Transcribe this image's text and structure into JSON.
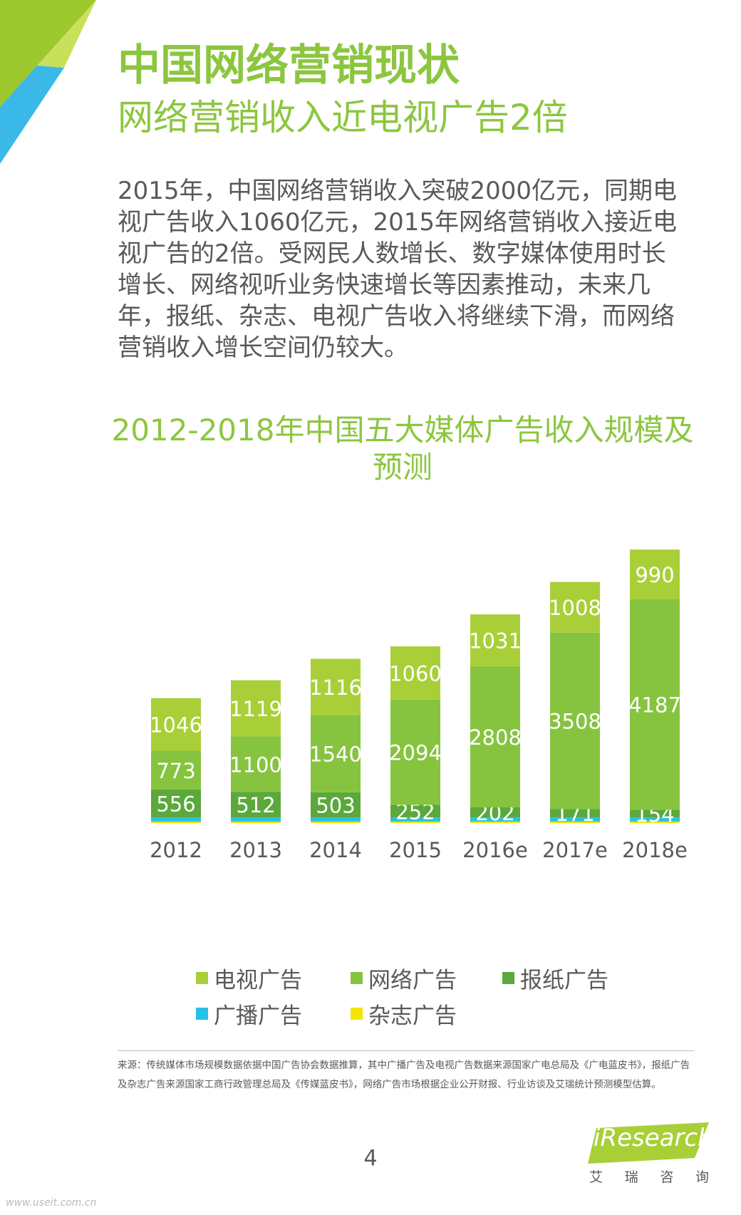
{
  "header": {
    "title": "中国网络营销现状",
    "subtitle": "网络营销收入近电视广告2倍"
  },
  "body": {
    "paragraph": "2015年，中国网络营销收入突破2000亿元，同期电视广告收入1060亿元，2015年网络营销收入接近电视广告的2倍。受网民人数增长、数字媒体使用时长增长、网络视听业务快速增长等因素推动，未来几年，报纸、杂志、电视广告收入将继续下滑，而网络营销收入增长空间仍较大。"
  },
  "chart_data": {
    "type": "bar",
    "stacked": true,
    "title": "2012-2018年中国五大媒体广告收入规模及预测",
    "categories": [
      "2012",
      "2013",
      "2014",
      "2015",
      "2016e",
      "2017e",
      "2018e"
    ],
    "series": [
      {
        "name": "杂志广告",
        "color": "#f2e600",
        "values": [
          30,
          30,
          30,
          30,
          30,
          30,
          30
        ],
        "labels": [
          null,
          null,
          null,
          null,
          null,
          null,
          null
        ]
      },
      {
        "name": "广播广告",
        "color": "#28c0e8",
        "values": [
          80,
          80,
          80,
          80,
          80,
          80,
          80
        ],
        "labels": [
          null,
          null,
          null,
          null,
          null,
          null,
          null
        ]
      },
      {
        "name": "报纸广告",
        "color": "#5ba83b",
        "values": [
          556,
          512,
          503,
          252,
          202,
          171,
          154
        ],
        "labels": [
          "556",
          "512",
          "503",
          "252",
          "202",
          "171",
          "154"
        ]
      },
      {
        "name": "网络广告",
        "color": "#86c440",
        "values": [
          773,
          1100,
          1540,
          2094,
          2808,
          3508,
          4187
        ],
        "labels": [
          "773",
          "1100",
          "1540",
          "2094",
          "2808",
          "3508",
          "4187"
        ]
      },
      {
        "name": "电视广告",
        "color": "#a9cf38",
        "values": [
          1046,
          1119,
          1116,
          1060,
          1031,
          1008,
          990
        ],
        "labels": [
          "1046",
          "1119",
          "1116",
          "1060",
          "1031",
          "1008",
          "990"
        ]
      }
    ],
    "legend_order": [
      "电视广告",
      "网络广告",
      "报纸广告",
      "广播广告",
      "杂志广告"
    ],
    "legend_position": "bottom",
    "grid": false,
    "ylim": [
      0,
      5600
    ]
  },
  "source": {
    "text": "来源：传统媒体市场规模数据依据中国广告协会数据推算，其中广播广告及电视广告数据来源国家广电总局及《广电蓝皮书》，报纸广告及杂志广告来源国家工商行政管理总局及《传媒蓝皮书》，网络广告市场根据企业公开财报、行业访谈及艾瑞统计预测模型估算。"
  },
  "footer": {
    "page_number": "4",
    "logo_text": "iResearch",
    "logo_cn": [
      "艾",
      "瑞",
      "咨",
      "询"
    ],
    "watermark": "www.useit.com.cn"
  },
  "colors": {
    "accent": "#8cc63f",
    "corner_green": "#9dc82e",
    "corner_blue": "#3ab9e9",
    "text_gray": "#595959"
  }
}
